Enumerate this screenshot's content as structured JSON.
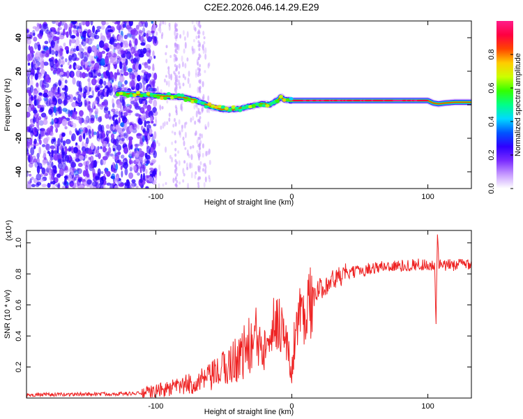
{
  "title": "C2E2.2026.046.14.29.E29",
  "chart_data": [
    {
      "type": "heatmap",
      "id": "spectrogram",
      "xlabel": "Height of straight line (km)",
      "ylabel": "Frequency (Hz)",
      "xlim": [
        -195,
        132
      ],
      "ylim": [
        -50,
        50
      ],
      "x_ticks": [
        -100,
        0,
        100
      ],
      "x_tick_labels": [
        "-100",
        "0",
        "100"
      ],
      "y_ticks": [
        -40,
        -20,
        0,
        20,
        40
      ],
      "y_tick_labels": [
        "-40",
        "-20",
        "0",
        "20",
        "40"
      ],
      "colorbar": {
        "label": "Normalized spectral amplitude",
        "ticks": [
          0.0,
          0.2,
          0.4,
          0.6,
          0.8
        ],
        "tick_labels": [
          "0.0",
          "0.2",
          "0.4",
          "0.6",
          "0.8"
        ],
        "range": [
          0,
          1
        ],
        "colors": [
          "#ffffff",
          "#c79bff",
          "#7a2cff",
          "#2e00ff",
          "#0055ff",
          "#00d9ff",
          "#00ff88",
          "#33ff00",
          "#ccff00",
          "#ffcc00",
          "#ff4400",
          "#ff0040",
          "#ff1c8a"
        ]
      },
      "signal_track": {
        "x": [
          -128,
          -120,
          -110,
          -100,
          -90,
          -80,
          -72,
          -64,
          -58,
          -52,
          -46,
          -40,
          -34,
          -28,
          -22,
          -16,
          -10,
          -8,
          -6,
          0,
          20,
          40,
          60,
          80,
          100,
          104,
          108,
          112,
          120,
          132
        ],
        "y": [
          7,
          6.5,
          6,
          5.5,
          5,
          4.5,
          3,
          0.5,
          -1.5,
          -2.5,
          -3,
          -2.5,
          -1.5,
          -0.5,
          0.5,
          0,
          3,
          5,
          3,
          2.5,
          2.5,
          2.5,
          2.5,
          2.5,
          2.5,
          1,
          0.5,
          1,
          1.5,
          1.5
        ]
      },
      "noise_region_x": [
        -195,
        -100
      ],
      "noise_stripes_x": [
        -85,
        -68
      ]
    },
    {
      "type": "line",
      "id": "snr",
      "xlabel": "Height of straight line (km)",
      "ylabel": "SNR (10 * v/v)",
      "y_multiplier": "(x10⁴)",
      "xlim": [
        -195,
        132
      ],
      "ylim": [
        0,
        1.08
      ],
      "x_ticks": [
        -100,
        0,
        100
      ],
      "x_tick_labels": [
        "-100",
        "0",
        "100"
      ],
      "y_ticks": [
        0.2,
        0.4,
        0.6,
        0.8,
        1.0
      ],
      "y_tick_labels": [
        "0.2",
        "0.4",
        "0.6",
        "0.8",
        "1.0"
      ],
      "series": [
        {
          "name": "SNR",
          "color": "#ee2222",
          "x": [
            -195,
            -150,
            -110,
            -100,
            -90,
            -80,
            -70,
            -60,
            -55,
            -50,
            -45,
            -40,
            -35,
            -30,
            -25,
            -22,
            -20,
            -15,
            -10,
            -8,
            -5,
            -2,
            0,
            2,
            5,
            10,
            15,
            20,
            30,
            40,
            50,
            60,
            70,
            80,
            90,
            100,
            105,
            106,
            107,
            108,
            110,
            120,
            132
          ],
          "y": [
            0.02,
            0.025,
            0.03,
            0.045,
            0.06,
            0.08,
            0.1,
            0.13,
            0.16,
            0.19,
            0.22,
            0.26,
            0.3,
            0.34,
            0.38,
            0.33,
            0.42,
            0.46,
            0.5,
            0.48,
            0.4,
            0.25,
            0.15,
            0.4,
            0.52,
            0.58,
            0.64,
            0.7,
            0.76,
            0.8,
            0.82,
            0.84,
            0.85,
            0.85,
            0.86,
            0.86,
            0.84,
            0.5,
            1.05,
            0.86,
            0.85,
            0.86,
            0.87
          ]
        }
      ]
    }
  ]
}
